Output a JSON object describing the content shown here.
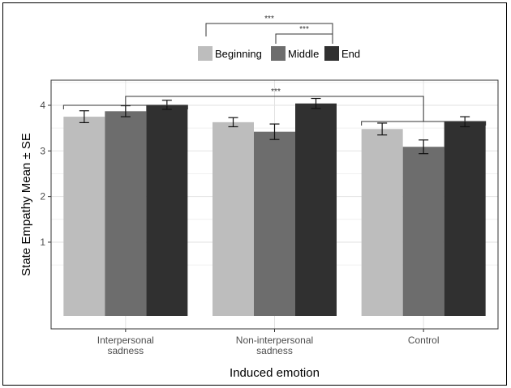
{
  "chart_data": {
    "type": "bar",
    "title": "",
    "xlabel": "Induced emotion",
    "ylabel": "State Empathy Mean ± SE",
    "ylim": [
      -0.9,
      4.55
    ],
    "yticks": [
      1,
      2,
      3,
      4
    ],
    "grid": true,
    "legend_position": "top",
    "categories": [
      [
        "Interpersonal",
        "sadness"
      ],
      [
        "Non-interpersonal",
        "sadness"
      ],
      [
        "Control"
      ]
    ],
    "series": [
      {
        "name": "Beginning",
        "color": "#bdbdbd",
        "values": [
          3.75,
          3.63,
          3.48
        ],
        "se": [
          0.13,
          0.1,
          0.13
        ]
      },
      {
        "name": "Middle",
        "color": "#6d6d6d",
        "values": [
          3.87,
          3.42,
          3.09
        ],
        "se": [
          0.12,
          0.17,
          0.15
        ]
      },
      {
        "name": "End",
        "color": "#303030",
        "values": [
          4.01,
          4.04,
          3.64
        ],
        "se": [
          0.1,
          0.11,
          0.11
        ]
      }
    ],
    "annotations": [
      {
        "label": "***",
        "between": "Beginning vs End"
      },
      {
        "label": "***",
        "between": "Middle vs End"
      },
      {
        "label": "***",
        "between": "Interpersonal sadness vs Control"
      }
    ]
  }
}
